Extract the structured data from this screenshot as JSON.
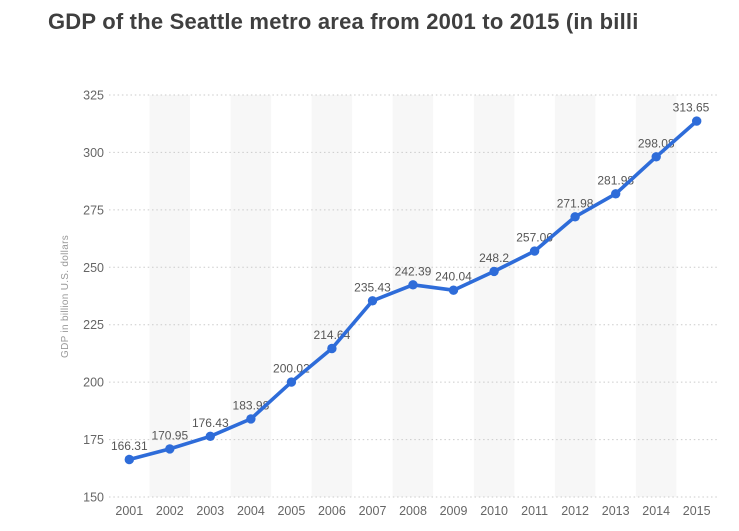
{
  "title": "GDP of the Seattle metro area from 2001 to 2015 (in billi",
  "colors": {
    "line": "#2e6cd9",
    "band": "#f7f7f7",
    "grid": "#cbcbcb",
    "title_text": "#3f3f3f",
    "axis_text": "#666666",
    "label_text": "#565656",
    "ylabel_text": "#999999",
    "background": "#ffffff"
  },
  "chart_data": {
    "type": "line",
    "title": "GDP of the Seattle metro area from 2001 to 2015 (in billi",
    "categories": [
      "2001",
      "2002",
      "2003",
      "2004",
      "2005",
      "2006",
      "2007",
      "2008",
      "2009",
      "2010",
      "2011",
      "2012",
      "2013",
      "2014",
      "2015"
    ],
    "series": [
      {
        "name": "GDP",
        "values": [
          166.31,
          170.95,
          176.43,
          183.98,
          200.02,
          214.64,
          235.43,
          242.39,
          240.04,
          248.2,
          257.06,
          271.98,
          281.98,
          298.08,
          313.65
        ]
      }
    ],
    "point_labels": [
      "166.31",
      "170.95",
      "176.43",
      "183.98",
      "200.02",
      "214.64",
      "235.43",
      "242.39",
      "240.04",
      "248.2",
      "257.06",
      "271.98",
      "281.98",
      "298.08",
      "313.65"
    ],
    "xlabel": "",
    "ylabel": "GDP in billion U.S. dollars",
    "ylim": [
      150,
      325
    ],
    "yticks": [
      150,
      175,
      200,
      225,
      250,
      275,
      300,
      325
    ],
    "grid": "horizontal-dotted",
    "legend": "none",
    "markers": true,
    "alternating_column_bands": true
  }
}
